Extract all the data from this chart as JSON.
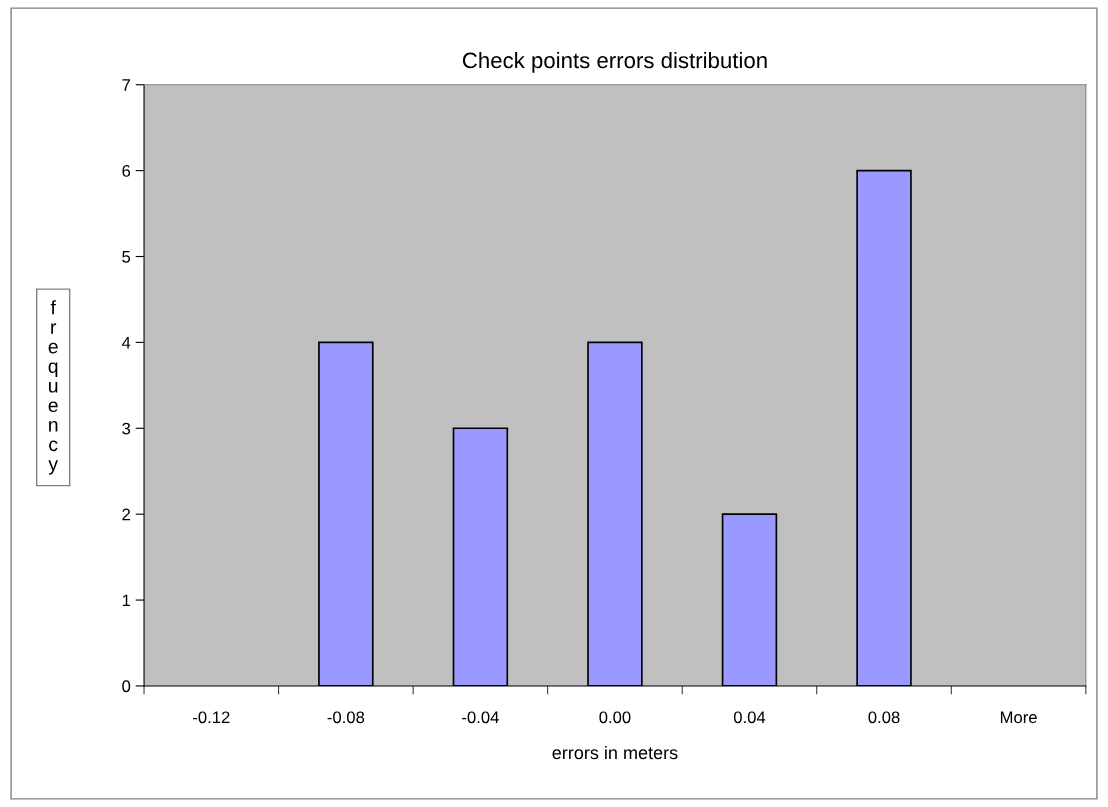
{
  "chart_data": {
    "type": "bar",
    "title": "Check points errors distribution",
    "xlabel": "errors in meters",
    "ylabel": "frequency",
    "categories": [
      "-0.12",
      "-0.08",
      "-0.04",
      "0.00",
      "0.04",
      "0.08",
      "More"
    ],
    "values": [
      0,
      4,
      3,
      4,
      2,
      6,
      0
    ],
    "color": "#9999ff",
    "ylim": [
      0,
      7
    ],
    "yticks": [
      0,
      1,
      2,
      3,
      4,
      5,
      6,
      7
    ],
    "grid": false,
    "legend": false
  }
}
